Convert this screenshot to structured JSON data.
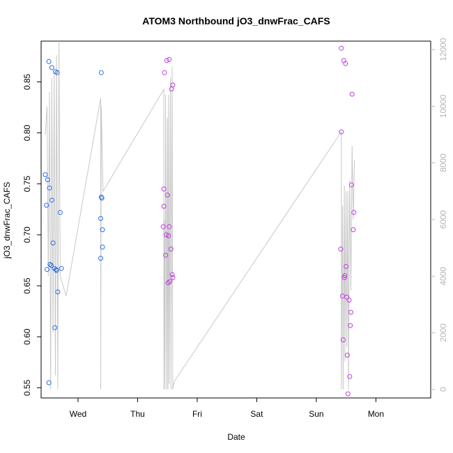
{
  "chart_data": {
    "type": "scatter",
    "title": "ATOM3 Northbound jO3_dnwFrac_CAFS",
    "xlabel": "Date",
    "ylabel": "jO3_dnwFrac_CAFS",
    "x_unit": "days",
    "xlim": [
      -0.62,
      5.92
    ],
    "ylim": [
      0.54,
      0.89
    ],
    "y_ticks": [
      0.55,
      0.6,
      0.65,
      0.7,
      0.75,
      0.8,
      0.85
    ],
    "y_tick_labels": [
      "0.55",
      "0.60",
      "0.65",
      "0.70",
      "0.75",
      "0.80",
      "0.85"
    ],
    "x_ticks": [
      0,
      1,
      2,
      3,
      4,
      5
    ],
    "x_tick_labels": [
      "Wed",
      "Thu",
      "Fri",
      "Sat",
      "Sun",
      "Mon"
    ],
    "y2_lim": [
      -300,
      12300
    ],
    "y2_ticks": [
      0,
      2000,
      4000,
      6000,
      8000,
      10000,
      12000
    ],
    "y2_tick_labels": [
      "0",
      "2000",
      "4000",
      "6000",
      "8000",
      "10000",
      "12000"
    ],
    "colors": {
      "series_1": "#2f6de0",
      "series_2": "#c23ce0",
      "altitude": "#c8c8c8",
      "right_axis": "#b5b5b5"
    },
    "series": [
      {
        "marker": "open-circle",
        "color": "#2f6de0",
        "points": [
          [
            -0.55,
            0.759
          ],
          [
            -0.53,
            0.729
          ],
          [
            -0.52,
            0.666
          ],
          [
            -0.51,
            0.754
          ],
          [
            -0.49,
            0.87
          ],
          [
            -0.49,
            0.555
          ],
          [
            -0.48,
            0.746
          ],
          [
            -0.47,
            0.671
          ],
          [
            -0.45,
            0.67
          ],
          [
            -0.44,
            0.864
          ],
          [
            -0.44,
            0.734
          ],
          [
            -0.42,
            0.692
          ],
          [
            -0.4,
            0.667
          ],
          [
            -0.39,
            0.609
          ],
          [
            -0.38,
            0.86
          ],
          [
            -0.37,
            0.666
          ],
          [
            -0.36,
            0.665
          ],
          [
            -0.35,
            0.859
          ],
          [
            -0.34,
            0.644
          ],
          [
            -0.3,
            0.722
          ],
          [
            -0.28,
            0.667
          ],
          [
            0.38,
            0.677
          ],
          [
            0.38,
            0.716
          ],
          [
            0.39,
            0.859
          ],
          [
            0.39,
            0.737
          ],
          [
            0.4,
            0.736
          ],
          [
            0.41,
            0.705
          ],
          [
            0.41,
            0.688
          ]
        ]
      },
      {
        "marker": "open-circle",
        "color": "#c23ce0",
        "points": [
          [
            1.43,
            0.708
          ],
          [
            1.44,
            0.745
          ],
          [
            1.44,
            0.728
          ],
          [
            1.45,
            0.859
          ],
          [
            1.47,
            0.68
          ],
          [
            1.48,
            0.7
          ],
          [
            1.49,
            0.871
          ],
          [
            1.5,
            0.739
          ],
          [
            1.51,
            0.653
          ],
          [
            1.52,
            0.699
          ],
          [
            1.53,
            0.708
          ],
          [
            1.53,
            0.872
          ],
          [
            1.54,
            0.654
          ],
          [
            1.56,
            0.686
          ],
          [
            1.57,
            0.843
          ],
          [
            1.58,
            0.661
          ],
          [
            1.59,
            0.658
          ],
          [
            1.59,
            0.847
          ],
          [
            4.41,
            0.686
          ],
          [
            4.42,
            0.883
          ],
          [
            4.42,
            0.801
          ],
          [
            4.44,
            0.64
          ],
          [
            4.45,
            0.597
          ],
          [
            4.46,
            0.871
          ],
          [
            4.47,
            0.658
          ],
          [
            4.48,
            0.66
          ],
          [
            4.49,
            0.868
          ],
          [
            4.5,
            0.669
          ],
          [
            4.51,
            0.639
          ],
          [
            4.52,
            0.582
          ],
          [
            4.53,
            0.544
          ],
          [
            4.55,
            0.636
          ],
          [
            4.56,
            0.561
          ],
          [
            4.57,
            0.611
          ],
          [
            4.58,
            0.624
          ],
          [
            4.59,
            0.749
          ],
          [
            4.6,
            0.838
          ],
          [
            4.62,
            0.705
          ],
          [
            4.63,
            0.722
          ]
        ]
      }
    ],
    "altitude_trace": {
      "axis": "right",
      "color": "#c8c8c8",
      "points": [
        [
          -0.55,
          9000
        ],
        [
          -0.52,
          10000
        ],
        [
          -0.5,
          4000
        ],
        [
          -0.48,
          10500
        ],
        [
          -0.46,
          0
        ],
        [
          -0.44,
          11000
        ],
        [
          -0.42,
          2000
        ],
        [
          -0.4,
          11200
        ],
        [
          -0.38,
          500
        ],
        [
          -0.36,
          11800
        ],
        [
          -0.34,
          0
        ],
        [
          -0.32,
          12300
        ],
        [
          -0.3,
          4000
        ],
        [
          -0.2,
          3300
        ],
        [
          0.38,
          10300
        ],
        [
          0.38,
          0
        ],
        [
          0.39,
          10000
        ],
        [
          0.42,
          7000
        ],
        [
          1.44,
          10600
        ],
        [
          1.44,
          0
        ],
        [
          1.45,
          6000
        ],
        [
          1.46,
          0
        ],
        [
          1.47,
          10400
        ],
        [
          1.49,
          0
        ],
        [
          1.5,
          9600
        ],
        [
          1.51,
          0
        ],
        [
          1.52,
          10400
        ],
        [
          1.53,
          200
        ],
        [
          1.55,
          11000
        ],
        [
          1.56,
          0
        ],
        [
          1.58,
          11400
        ],
        [
          1.59,
          0
        ],
        [
          1.62,
          300
        ],
        [
          4.42,
          9100
        ],
        [
          4.42,
          0
        ],
        [
          4.44,
          6500
        ],
        [
          4.45,
          0
        ],
        [
          4.47,
          7200
        ],
        [
          4.48,
          1000
        ],
        [
          4.5,
          7000
        ],
        [
          4.51,
          1500
        ],
        [
          4.53,
          7000
        ],
        [
          4.54,
          0
        ],
        [
          4.56,
          7400
        ],
        [
          4.58,
          3500
        ],
        [
          4.6,
          8600
        ],
        [
          4.62,
          6000
        ],
        [
          4.64,
          8100
        ]
      ]
    }
  }
}
